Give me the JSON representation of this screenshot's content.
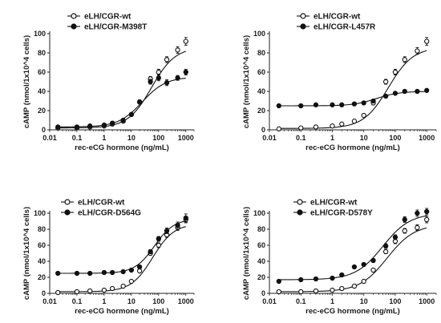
{
  "chart_data": [
    {
      "type": "scatter",
      "xscale": "log",
      "xlim": [
        0.01,
        2000
      ],
      "ylim": [
        0,
        100
      ],
      "xlabel": "rec-eCG hormone (ng/mL)",
      "ylabel": "cAMP (nmol/1x10^4 cells)",
      "xticks": [
        "0.01",
        "0.1",
        "1",
        "10",
        "100",
        "1000"
      ],
      "yticks": [
        "0",
        "20",
        "40",
        "60",
        "80",
        "100"
      ],
      "legend_position": "top-left",
      "series": [
        {
          "name": "eLH/CGR-wt",
          "marker": "open-circle",
          "x": [
            0.02,
            0.1,
            0.3,
            1,
            2,
            5,
            10,
            20,
            50,
            100,
            200,
            500,
            1000
          ],
          "y": [
            2,
            2,
            3,
            4,
            6,
            9,
            16,
            29,
            53,
            60,
            73,
            83,
            92
          ],
          "err": [
            0.5,
            0.5,
            0.5,
            0.5,
            0.8,
            1,
            1.5,
            2,
            2.5,
            3,
            3,
            3.5,
            4
          ],
          "fit": {
            "bottom": 2,
            "top": 86,
            "ec50": 55,
            "hill": 1.0
          }
        },
        {
          "name": "eLH/CGR-M398T",
          "marker": "filled-circle",
          "x": [
            0.02,
            0.1,
            0.3,
            1,
            2,
            5,
            10,
            20,
            50,
            100,
            200,
            500,
            1000
          ],
          "y": [
            3,
            3,
            4,
            5,
            7,
            10,
            16,
            29,
            50,
            54,
            49,
            54,
            60
          ],
          "err": [
            0.5,
            0.5,
            0.5,
            0.5,
            0.8,
            1,
            1.5,
            2,
            2.5,
            3,
            3,
            2.5,
            3
          ],
          "fit": {
            "bottom": 3,
            "top": 55,
            "ec50": 25,
            "hill": 1.0
          }
        }
      ]
    },
    {
      "type": "scatter",
      "xscale": "log",
      "xlim": [
        0.01,
        2000
      ],
      "ylim": [
        0,
        100
      ],
      "xlabel": "rec-eCG hormone (ng/mL)",
      "ylabel": "cAMP (nmol/1x10^4 cells)",
      "xticks": [
        "0.01",
        "0.1",
        "1",
        "10",
        "100",
        "1000"
      ],
      "yticks": [
        "0",
        "20",
        "40",
        "60",
        "80",
        "100"
      ],
      "legend_position": "top-left",
      "series": [
        {
          "name": "eLH/CGR-wt",
          "marker": "open-circle",
          "x": [
            0.02,
            0.1,
            0.3,
            1,
            2,
            5,
            10,
            20,
            50,
            100,
            200,
            500,
            1000
          ],
          "y": [
            1,
            2,
            3,
            4,
            6,
            9,
            15,
            28,
            50,
            60,
            73,
            82,
            92
          ],
          "err": [
            0.5,
            0.5,
            0.5,
            0.5,
            0.8,
            1,
            1.5,
            2,
            2.5,
            3,
            3,
            3.5,
            4
          ],
          "fit": {
            "bottom": 1.5,
            "top": 86,
            "ec50": 60,
            "hill": 1.1
          }
        },
        {
          "name": "eLH/CGR-L457R",
          "marker": "filled-circle",
          "x": [
            0.02,
            0.1,
            0.3,
            1,
            2,
            5,
            10,
            20,
            50,
            100,
            200,
            500,
            1000
          ],
          "y": [
            25,
            25,
            26,
            26,
            26,
            27,
            28,
            30,
            35,
            38,
            40,
            40,
            41
          ],
          "err": [
            0.8,
            0.8,
            0.8,
            0.8,
            0.8,
            1,
            1,
            1.5,
            1.5,
            1.5,
            1.5,
            1.5,
            1.5
          ],
          "fit": {
            "bottom": 25,
            "top": 40,
            "ec50": 25,
            "hill": 1.2
          }
        }
      ]
    },
    {
      "type": "scatter",
      "xscale": "log",
      "xlim": [
        0.01,
        2000
      ],
      "ylim": [
        0,
        100
      ],
      "xlabel": "rec-eCG hormone (ng/mL)",
      "ylabel": "cAMP (nmol/1x10^4 cells)",
      "xticks": [
        "0.01",
        "0.1",
        "1",
        "10",
        "100",
        "1000"
      ],
      "yticks": [
        "0",
        "20",
        "40",
        "60",
        "80",
        "100"
      ],
      "legend_position": "top-left",
      "series": [
        {
          "name": "eLH/CGR-wt",
          "marker": "open-circle",
          "x": [
            0.02,
            0.1,
            0.3,
            1,
            2,
            5,
            10,
            20,
            50,
            100,
            200,
            500,
            1000
          ],
          "y": [
            1,
            2,
            3,
            4,
            6,
            9,
            15,
            28,
            50,
            60,
            73,
            82,
            92
          ],
          "err": [
            0.5,
            0.5,
            0.5,
            0.5,
            0.8,
            1,
            1.5,
            2,
            2.5,
            3,
            3,
            3.5,
            4
          ],
          "fit": {
            "bottom": 2,
            "top": 87,
            "ec50": 60,
            "hill": 1.1
          }
        },
        {
          "name": "eLH/CGR-D564G",
          "marker": "filled-circle",
          "x": [
            0.02,
            0.1,
            0.3,
            1,
            2,
            5,
            10,
            20,
            50,
            100,
            200,
            500,
            1000
          ],
          "y": [
            25,
            25,
            25,
            26,
            26,
            27,
            29,
            33,
            52,
            68,
            78,
            85,
            94
          ],
          "err": [
            0.8,
            0.8,
            0.8,
            0.8,
            0.8,
            1,
            1,
            1.5,
            2.5,
            3,
            3.5,
            4,
            5
          ],
          "fit": {
            "bottom": 25,
            "top": 93,
            "ec50": 70,
            "hill": 1.2
          }
        }
      ]
    },
    {
      "type": "scatter",
      "xscale": "log",
      "xlim": [
        0.01,
        2000
      ],
      "ylim": [
        0,
        100
      ],
      "xlabel": "rec-eCG hormone (ng/mL)",
      "ylabel": "cAMP (nmol/1x10^4 cells)",
      "xticks": [
        "0.01",
        "0.1",
        "1",
        "10",
        "100",
        "1000"
      ],
      "yticks": [
        "0",
        "20",
        "40",
        "60",
        "80",
        "100"
      ],
      "legend_position": "top-left",
      "series": [
        {
          "name": "eLH/CGR-wt",
          "marker": "open-circle",
          "x": [
            0.02,
            0.1,
            0.3,
            1,
            2,
            5,
            10,
            20,
            50,
            100,
            200,
            500,
            1000
          ],
          "y": [
            2,
            2,
            3,
            4,
            6,
            9,
            15,
            29,
            52,
            65,
            78,
            82,
            92
          ],
          "err": [
            0.5,
            0.5,
            0.5,
            0.5,
            0.8,
            1,
            1.5,
            2,
            2.5,
            3,
            3,
            3.5,
            4
          ],
          "fit": {
            "bottom": 2,
            "top": 86,
            "ec50": 55,
            "hill": 1.0
          }
        },
        {
          "name": "eLH/CGR-D578Y",
          "marker": "filled-circle",
          "x": [
            0.02,
            0.1,
            0.3,
            1,
            2,
            5,
            10,
            20,
            50,
            100,
            200,
            500,
            1000
          ],
          "y": [
            15,
            17,
            18,
            19,
            23,
            33,
            36,
            41,
            59,
            70,
            92,
            100,
            102
          ],
          "err": [
            0.8,
            0.8,
            0.8,
            1,
            1,
            1.5,
            2,
            2.5,
            3,
            3,
            3.5,
            4,
            4
          ],
          "fit": {
            "bottom": 17,
            "top": 100,
            "ec50": 40,
            "hill": 1.0
          }
        }
      ]
    }
  ]
}
